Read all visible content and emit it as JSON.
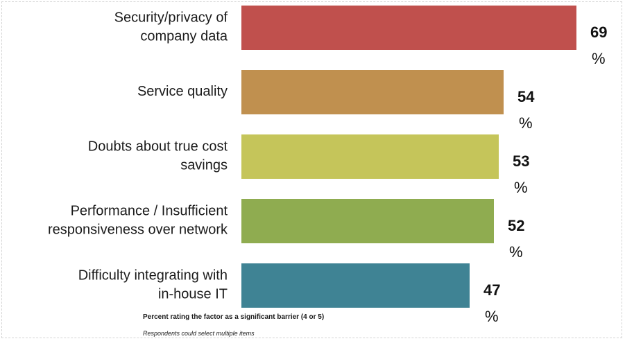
{
  "chart_data": {
    "type": "bar",
    "orientation": "horizontal",
    "categories": [
      [
        "Security/privacy of",
        "company data"
      ],
      [
        "Service quality"
      ],
      [
        "Doubts about true cost",
        "savings"
      ],
      [
        "Performance / Insufficient",
        "responsiveness over network"
      ],
      [
        "Difficulty integrating with",
        "in-house IT"
      ]
    ],
    "values": [
      69,
      54,
      53,
      52,
      47
    ],
    "value_labels": [
      "69",
      "54",
      "53",
      "52",
      "47"
    ],
    "unit": "%",
    "colors": [
      "#c0504d",
      "#c0904f",
      "#c5c55a",
      "#8fac50",
      "#3f8394"
    ],
    "xlim": [
      0,
      100
    ],
    "grid": false,
    "legend": "none"
  },
  "notes": {
    "line1": "Percent rating the factor as a significant barrier (4 or 5)",
    "line2": "Respondents could select multiple items"
  }
}
